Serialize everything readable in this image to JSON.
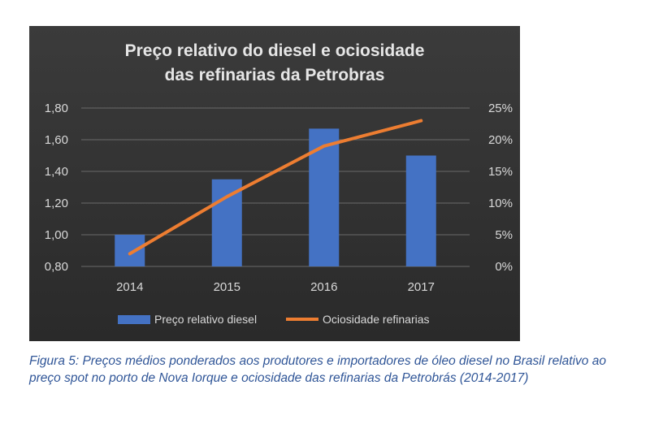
{
  "chart_data": {
    "type": "bar+line",
    "title_lines": [
      "Preço relativo do diesel e ociosidade",
      "das refinarias da Petrobras"
    ],
    "categories": [
      "2014",
      "2015",
      "2016",
      "2017"
    ],
    "series": [
      {
        "name": "Preço relativo diesel",
        "type": "bar",
        "axis": "left",
        "values": [
          1.0,
          1.35,
          1.67,
          1.5
        ],
        "color": "#4472c4"
      },
      {
        "name": "Ociosidade refinarias",
        "type": "line",
        "axis": "right",
        "values": [
          2,
          11,
          19,
          23
        ],
        "color": "#ed7d31"
      }
    ],
    "left_axis": {
      "min": 0.8,
      "max": 1.8,
      "ticks": [
        "0,80",
        "1,00",
        "1,20",
        "1,40",
        "1,60",
        "1,80"
      ]
    },
    "right_axis": {
      "min": 0,
      "max": 25,
      "ticks": [
        "0%",
        "5%",
        "10%",
        "15%",
        "20%",
        "25%"
      ]
    },
    "grid": true,
    "legend_position": "bottom",
    "background": "#3a3a3a"
  },
  "caption": "Figura 5: Preços médios ponderados aos produtores e importadores de óleo diesel no Brasil relativo ao preço spot no porto de Nova Iorque e ociosidade das refinarias da Petrobrás (2014-2017)"
}
